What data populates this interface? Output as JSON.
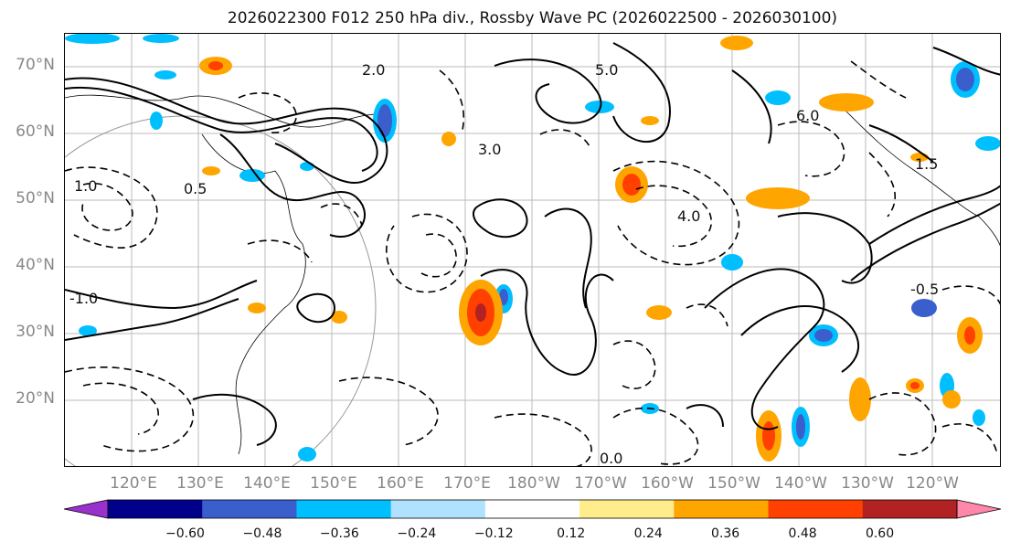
{
  "title": "2026022300 F012 250 hPa div., Rossby Wave PC (2026022500 - 2026030100)",
  "lat_labels": [
    "70°N",
    "60°N",
    "50°N",
    "40°N",
    "30°N",
    "20°N"
  ],
  "lon_labels": [
    "120°E",
    "130°E",
    "140°E",
    "150°E",
    "160°E",
    "170°E",
    "180°W",
    "170°W",
    "160°W",
    "150°W",
    "140°W",
    "130°W",
    "120°W"
  ],
  "colorbar": {
    "colors": [
      "#9932cc",
      "#00008b",
      "#3a5fcd",
      "#00bfff",
      "#b0e2ff",
      "#ffffff",
      "#ffec8b",
      "#ffa500",
      "#ff4000",
      "#b22222",
      "#ff88aa"
    ],
    "ticks": [
      "−0.60",
      "−0.48",
      "−0.36",
      "−0.24",
      "−0.12",
      "0.12",
      "0.24",
      "0.36",
      "0.48",
      "0.60"
    ]
  },
  "contour_labels": [
    "3.0",
    "2.0",
    "1.0",
    "0.5",
    "1.5",
    "4.0",
    "5.0",
    "6.0",
    "-0.5",
    "-1.0",
    "0.0"
  ]
}
